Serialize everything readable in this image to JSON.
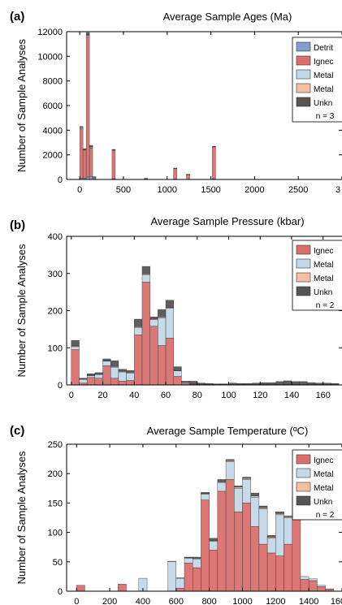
{
  "chart_data": [
    {
      "type": "bar",
      "stacked": true,
      "panel_label": "(a)",
      "title": "Average Sample Ages (Ma)",
      "xlabel": "",
      "ylabel": "Number of Sample Analyses",
      "xlim": [
        -150,
        3000
      ],
      "ylim": [
        0,
        12000
      ],
      "xticks": [
        "0",
        "500",
        "1000",
        "1500",
        "2000",
        "2500",
        "3"
      ],
      "yticks": [
        "0",
        "2000",
        "4000",
        "6000",
        "8000",
        "10000",
        "12000"
      ],
      "bin_width": 37,
      "bins": [
        0,
        37,
        74,
        111,
        148,
        370,
        740,
        1073,
        1221,
        1517
      ],
      "series": [
        {
          "name": "Detrit",
          "color": "#7f9fcf",
          "values": [
            120,
            80,
            200,
            250,
            120,
            60,
            40,
            30,
            20,
            40
          ]
        },
        {
          "name": "Ignec",
          "color": "#d9706d",
          "values": [
            4000,
            2300,
            11400,
            2300,
            60,
            2300,
            20,
            850,
            380,
            2600
          ]
        },
        {
          "name": "Metal",
          "color": "#c3d8e8",
          "values": [
            100,
            60,
            100,
            80,
            20,
            40,
            10,
            20,
            10,
            20
          ]
        },
        {
          "name": "Metal",
          "color": "#f5bfa0",
          "values": [
            20,
            10,
            30,
            20,
            5,
            10,
            5,
            5,
            5,
            5
          ]
        },
        {
          "name": "Unkn",
          "color": "#555555",
          "values": [
            60,
            50,
            200,
            120,
            20,
            30,
            20,
            20,
            10,
            20
          ]
        }
      ],
      "legend_note": "n = 3",
      "legend_position": "top-right"
    },
    {
      "type": "bar",
      "stacked": true,
      "panel_label": "(b)",
      "title": "Average Sample Pressure (kbar)",
      "xlabel": "",
      "ylabel": "Number of Sample Analyses",
      "xlim": [
        -3,
        172
      ],
      "ylim": [
        0,
        400
      ],
      "xticks": [
        "0",
        "20",
        "40",
        "60",
        "80",
        "100",
        "120",
        "140",
        "160"
      ],
      "yticks": [
        "0",
        "100",
        "200",
        "300",
        "400"
      ],
      "bin_width": 5,
      "bins": [
        0,
        5,
        10,
        15,
        20,
        25,
        30,
        35,
        40,
        45,
        50,
        55,
        60,
        65,
        70,
        75,
        80,
        85,
        90,
        95,
        100,
        105,
        110,
        115,
        120,
        125,
        130,
        135,
        140,
        145,
        150,
        155,
        160,
        165
      ],
      "series": [
        {
          "name": "Ignec",
          "color": "#d9706d",
          "values": [
            95,
            5,
            20,
            18,
            52,
            18,
            10,
            12,
            135,
            277,
            158,
            106,
            126,
            23,
            3,
            0,
            0,
            0,
            0,
            0,
            0,
            0,
            0,
            0,
            0,
            0,
            0,
            0,
            0,
            0,
            0,
            0,
            0,
            0
          ]
        },
        {
          "name": "Metal",
          "color": "#c3d8e8",
          "values": [
            8,
            10,
            5,
            10,
            12,
            30,
            25,
            20,
            20,
            20,
            18,
            75,
            80,
            15,
            3,
            2,
            2,
            1,
            1,
            1,
            1,
            1,
            1,
            1,
            1,
            1,
            1,
            1,
            1,
            1,
            1,
            1,
            1,
            1
          ]
        },
        {
          "name": "Metal",
          "color": "#f5bfa0",
          "values": [
            2,
            1,
            1,
            1,
            1,
            2,
            2,
            2,
            2,
            2,
            2,
            2,
            2,
            1,
            1,
            0,
            0,
            0,
            0,
            0,
            0,
            0,
            0,
            0,
            0,
            0,
            0,
            0,
            0,
            0,
            0,
            0,
            0,
            0
          ]
        },
        {
          "name": "Unkn",
          "color": "#555555",
          "values": [
            15,
            2,
            4,
            4,
            5,
            15,
            5,
            5,
            20,
            20,
            5,
            20,
            20,
            10,
            3,
            8,
            3,
            3,
            2,
            2,
            4,
            3,
            3,
            4,
            5,
            5,
            8,
            10,
            8,
            8,
            5,
            4,
            4,
            3
          ]
        }
      ],
      "legend_note": "n = 2",
      "legend_position": "top-right"
    },
    {
      "type": "bar",
      "stacked": true,
      "panel_label": "(c)",
      "title": "Average Sample Temperature (ºC)",
      "xlabel": "",
      "ylabel": "Number of Sample Analyses",
      "xlim": [
        -60,
        1600
      ],
      "ylim": [
        0,
        250
      ],
      "xticks": [
        "0",
        "200",
        "400",
        "600",
        "800",
        "1000",
        "1200",
        "1400",
        "160"
      ],
      "yticks": [
        "0",
        "50",
        "100",
        "150",
        "200",
        "250"
      ],
      "bin_width": 50,
      "bins": [
        0,
        250,
        375,
        550,
        600,
        650,
        700,
        750,
        800,
        850,
        900,
        950,
        1000,
        1050,
        1100,
        1150,
        1200,
        1250,
        1300,
        1350,
        1400,
        1450,
        1500
      ],
      "series": [
        {
          "name": "Ignec",
          "color": "#d9706d",
          "values": [
            10,
            12,
            0,
            0,
            5,
            48,
            40,
            155,
            70,
            170,
            190,
            135,
            150,
            110,
            80,
            65,
            60,
            80,
            140,
            20,
            18,
            8,
            3
          ]
        },
        {
          "name": "Metal",
          "color": "#c3d8e8",
          "values": [
            0,
            0,
            22,
            50,
            17,
            8,
            15,
            10,
            15,
            15,
            30,
            40,
            40,
            50,
            60,
            25,
            70,
            45,
            20,
            5,
            3,
            2,
            1
          ]
        },
        {
          "name": "Metal",
          "color": "#f5bfa0",
          "values": [
            0,
            0,
            0,
            1,
            1,
            1,
            1,
            1,
            1,
            1,
            2,
            2,
            2,
            2,
            2,
            2,
            2,
            2,
            1,
            0,
            0,
            0,
            0
          ]
        },
        {
          "name": "Unkn",
          "color": "#555555",
          "values": [
            0,
            0,
            0,
            0,
            0,
            1,
            2,
            2,
            4,
            4,
            2,
            2,
            2,
            5,
            3,
            3,
            3,
            1,
            2,
            0,
            0,
            0,
            0
          ]
        }
      ],
      "legend_note": "n = 2",
      "legend_position": "top-right"
    }
  ]
}
